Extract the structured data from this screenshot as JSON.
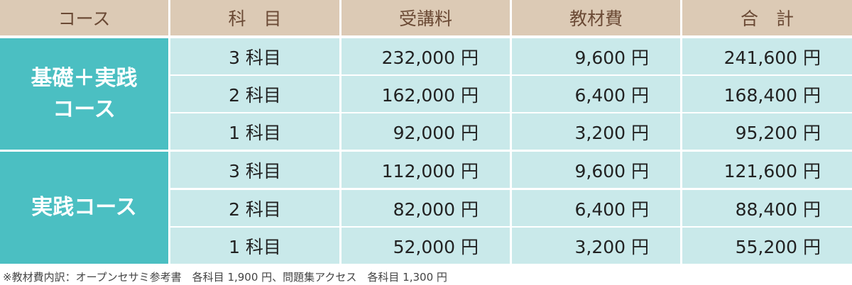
{
  "table": {
    "header": [
      "コース",
      "科　目",
      "受講料",
      "教材費",
      "合　計"
    ],
    "groups": [
      {
        "course": [
          "基礎＋実践",
          "コース"
        ],
        "rows": [
          [
            "3 科目",
            "232,000 円",
            "9,600 円",
            "241,600 円"
          ],
          [
            "2 科目",
            "162,000 円",
            "6,400 円",
            "168,400 円"
          ],
          [
            "1 科目",
            "92,000 円",
            "3,200 円",
            "95,200 円"
          ]
        ]
      },
      {
        "course": [
          "実践コース"
        ],
        "rows": [
          [
            "3 科目",
            "112,000 円",
            "9,600 円",
            "121,600 円"
          ],
          [
            "2 科目",
            "82,000 円",
            "6,400 円",
            "88,400 円"
          ],
          [
            "1 科目",
            "52,000 円",
            "3,200 円",
            "55,200 円"
          ]
        ]
      }
    ]
  },
  "footnote": "※教材費内訳：オープンセサミ参考書　各科目 1,900 円、問題集アクセス　各科目 1,300 円"
}
